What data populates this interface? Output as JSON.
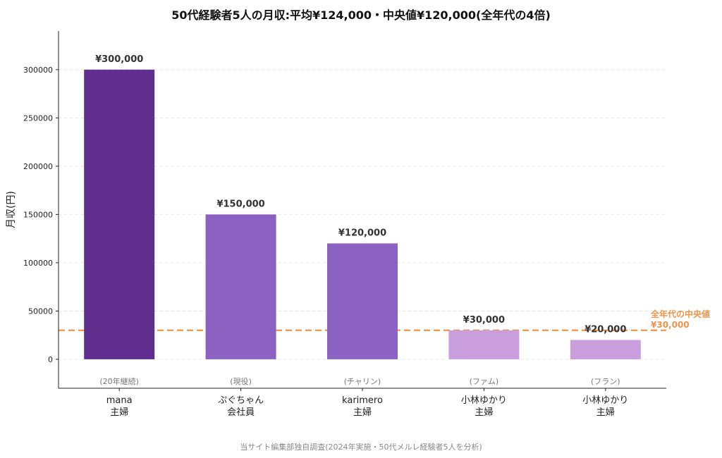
{
  "title": "50代経験者5人の月収:平均¥124,000・中央値¥120,000(全年代の4倍)",
  "source": "当サイト編集部独自調査(2024年実施・50代メルレ経験者5人を分析)",
  "colors": {
    "bar_dark": "#5e2f8e",
    "bar_mid": "#8b62c2",
    "bar_light": "#c89fdc",
    "median_line": "#f0944b",
    "grid": "#e6e6e6"
  },
  "chart_data": {
    "type": "bar",
    "ylabel": "月収(円)",
    "ylim": [
      -30000,
      340000
    ],
    "yticks": [
      0,
      50000,
      100000,
      150000,
      200000,
      250000,
      300000
    ],
    "ytick_labels": [
      "0",
      "50000",
      "100000",
      "150000",
      "200000",
      "250000",
      "300000"
    ],
    "grid": "horizontal-dashed",
    "bars": [
      {
        "name": "mana",
        "role": "主婦",
        "note": "(20年継続)",
        "value": 300000,
        "value_label": "¥300,000",
        "shade": "bar_dark"
      },
      {
        "name": "ぷぐちゃん",
        "role": "会社員",
        "note": "(現役)",
        "value": 150000,
        "value_label": "¥150,000",
        "shade": "bar_mid"
      },
      {
        "name": "karimero",
        "role": "主婦",
        "note": "(チャリン)",
        "value": 120000,
        "value_label": "¥120,000",
        "shade": "bar_mid"
      },
      {
        "name": "小林ゆかり",
        "role": "主婦",
        "note": "(ファム)",
        "value": 30000,
        "value_label": "¥30,000",
        "shade": "bar_light"
      },
      {
        "name": "小林ゆかり",
        "role": "主婦",
        "note": "(フラン)",
        "value": 20000,
        "value_label": "¥20,000",
        "shade": "bar_light"
      }
    ],
    "reference_line": {
      "value": 30000,
      "label_line1": "全年代の中央値",
      "label_line2": "¥30,000"
    }
  }
}
